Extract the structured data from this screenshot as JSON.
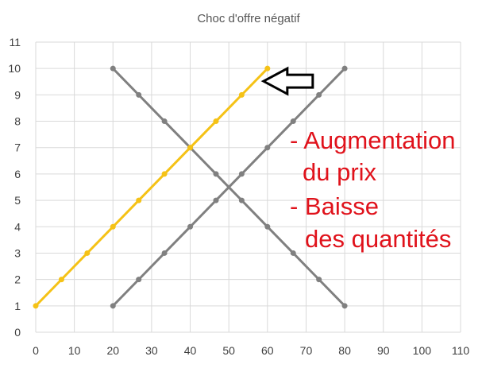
{
  "chart_data": {
    "type": "line",
    "title": "Choc  d'offre négatif",
    "xlim": [
      0,
      110
    ],
    "ylim": [
      0,
      11
    ],
    "x_ticks": [
      0,
      10,
      20,
      30,
      40,
      50,
      60,
      70,
      80,
      90,
      100,
      110
    ],
    "y_ticks": [
      0,
      1,
      2,
      3,
      4,
      5,
      6,
      7,
      8,
      9,
      10,
      11
    ],
    "grid": true,
    "legend": "none",
    "series": [
      {
        "color": "#808080",
        "points": [
          [
            20,
            10
          ],
          [
            26.67,
            9
          ],
          [
            33.33,
            8
          ],
          [
            40,
            7
          ],
          [
            46.67,
            6
          ],
          [
            53.33,
            5
          ],
          [
            60,
            4
          ],
          [
            66.67,
            3
          ],
          [
            73.33,
            2
          ],
          [
            80,
            1
          ]
        ]
      },
      {
        "color": "#808080",
        "points": [
          [
            20,
            1
          ],
          [
            26.67,
            2
          ],
          [
            33.33,
            3
          ],
          [
            40,
            4
          ],
          [
            46.67,
            5
          ],
          [
            53.33,
            6
          ],
          [
            60,
            7
          ],
          [
            66.67,
            8
          ],
          [
            73.33,
            9
          ],
          [
            80,
            10
          ]
        ]
      },
      {
        "color": "#f5c216",
        "points": [
          [
            0,
            1
          ],
          [
            6.67,
            2
          ],
          [
            13.33,
            3
          ],
          [
            20,
            4
          ],
          [
            26.67,
            5
          ],
          [
            33.33,
            6
          ],
          [
            40,
            7
          ],
          [
            46.67,
            8
          ],
          [
            53.33,
            9
          ],
          [
            60,
            10
          ]
        ]
      }
    ],
    "annotations": {
      "arrow": {
        "points_to": [
          60,
          10
        ],
        "direction": "left"
      },
      "lines": [
        "- Augmentation",
        "du prix",
        "- Baisse",
        "des quantités"
      ],
      "color": "#e0121b"
    }
  }
}
